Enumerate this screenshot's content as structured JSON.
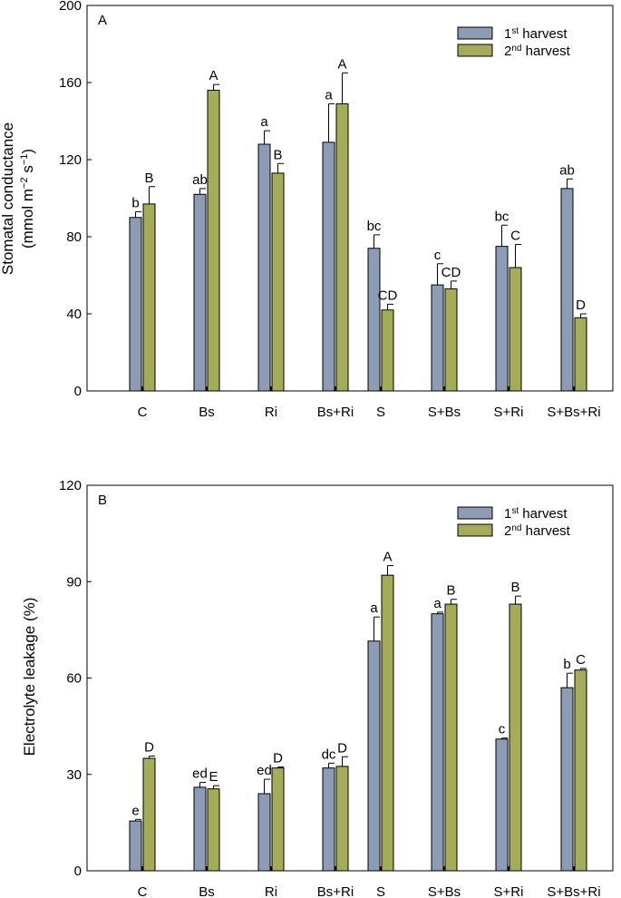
{
  "colors": {
    "harvest1": "#8c9cb4",
    "harvest2": "#a5ac57",
    "outline": "#000000"
  },
  "chart_data": [
    {
      "type": "bar",
      "panel_label": "A",
      "ylabel_line1": "Stomatal conductance",
      "ylabel_line2_parts": [
        "(mmol m",
        "−2",
        " s",
        "−1",
        ")"
      ],
      "ylim": [
        0,
        200
      ],
      "yticks": [
        0,
        40,
        80,
        120,
        160,
        200
      ],
      "categories": [
        "C",
        "Bs",
        "Ri",
        "Bs+Ri",
        "S",
        "S+Bs",
        "S+Ri",
        "S+Bs+Ri"
      ],
      "legend": {
        "placement": "top-right",
        "entries": [
          {
            "base": "1",
            "sup": "st",
            "rest": " harvest"
          },
          {
            "base": "2",
            "sup": "nd",
            "rest": " harvest"
          }
        ]
      },
      "series": [
        {
          "values": [
            90,
            102,
            128,
            129,
            74,
            55,
            75,
            105
          ],
          "errors": [
            3,
            3,
            7,
            20,
            7,
            11,
            11,
            5
          ],
          "labels": [
            "b",
            "ab",
            "a",
            "a",
            "bc",
            "c",
            "bc",
            "ab"
          ]
        },
        {
          "values": [
            97,
            156,
            113,
            149,
            42,
            53,
            64,
            38
          ],
          "errors": [
            9,
            3,
            5,
            16,
            3,
            4,
            12,
            2
          ],
          "labels": [
            "B",
            "A",
            "B",
            "A",
            "CD",
            "CD",
            "C",
            "D"
          ]
        }
      ]
    },
    {
      "type": "bar",
      "panel_label": "B",
      "ylabel_line1": "Electrolyte leakage (%)",
      "ylim": [
        0,
        120
      ],
      "yticks": [
        0,
        30,
        60,
        90,
        120
      ],
      "categories": [
        "C",
        "Bs",
        "Ri",
        "Bs+Ri",
        "S",
        "S+Bs",
        "S+Ri",
        "S+Bs+Ri"
      ],
      "legend": {
        "placement": "top-right",
        "entries": [
          {
            "base": "1",
            "sup": "st",
            "rest": " harvest"
          },
          {
            "base": "2",
            "sup": "nd",
            "rest": " harvest"
          }
        ]
      },
      "series": [
        {
          "values": [
            15.5,
            26,
            24,
            32,
            71.5,
            80,
            41,
            57
          ],
          "errors": [
            0.5,
            1.5,
            4.5,
            1.5,
            7.5,
            0.5,
            0.3,
            4.5
          ],
          "labels": [
            "e",
            "ed",
            "ed",
            "dc",
            "a",
            "a",
            "c",
            "b"
          ]
        },
        {
          "values": [
            35,
            25.5,
            32,
            32.5,
            92,
            83,
            83,
            62.5
          ],
          "errors": [
            0.7,
            1,
            0.3,
            3,
            3,
            1.5,
            2.5,
            0.5
          ],
          "labels": [
            "D",
            "E",
            "D",
            "D",
            "A",
            "B",
            "B",
            "C"
          ]
        }
      ]
    }
  ]
}
